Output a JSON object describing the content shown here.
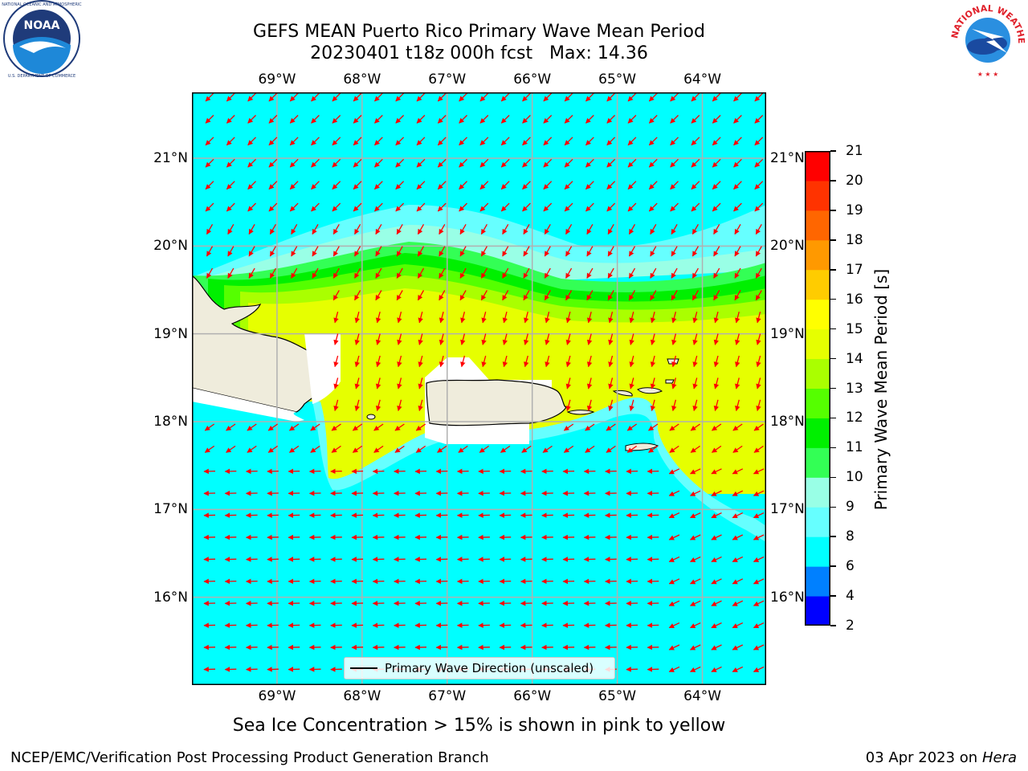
{
  "title": {
    "line1": "GEFS MEAN Puerto Rico Primary Wave Mean Period",
    "line2": "20230401 t18z 000h fcst   Max: 14.36"
  },
  "logos": {
    "left": {
      "icon": "noaa-logo",
      "text": "NOAA",
      "ring_text": "NATIONAL OCEANIC AND ATMOSPHERIC ADMINISTRATION · U.S. DEPARTMENT OF COMMERCE"
    },
    "right": {
      "icon": "nws-logo",
      "ring_text": "NATIONAL WEATHER SERVICE"
    }
  },
  "map": {
    "lon_ticks": [
      "69°W",
      "68°W",
      "67°W",
      "66°W",
      "65°W",
      "64°W"
    ],
    "lat_ticks": [
      "21°N",
      "20°N",
      "19°N",
      "18°N",
      "17°N",
      "16°N"
    ],
    "lon_values": [
      -69,
      -68,
      -67,
      -66,
      -65,
      -64
    ],
    "lat_values": [
      21,
      20,
      19,
      18,
      17,
      16
    ],
    "extent": {
      "lon_min": -70.0,
      "lon_max": -63.25,
      "lat_min": 15.0,
      "lat_max": 21.75
    },
    "land_color": "#efecdc",
    "ocean_base_color": "#00ffff",
    "arrow_color": "#ff0000",
    "legend_label": "Primary Wave Direction (unscaled)"
  },
  "colorbar": {
    "label": "Primary Wave Mean Period [s]",
    "ticks": [
      "2",
      "4",
      "6",
      "8",
      "9",
      "10",
      "11",
      "12",
      "13",
      "14",
      "15",
      "16",
      "17",
      "18",
      "19",
      "20",
      "21"
    ],
    "bins": [
      {
        "lo": 2,
        "hi": 4,
        "color": "#0000ff"
      },
      {
        "lo": 4,
        "hi": 6,
        "color": "#0080ff"
      },
      {
        "lo": 6,
        "hi": 8,
        "color": "#00ffff"
      },
      {
        "lo": 8,
        "hi": 9,
        "color": "#66ffff"
      },
      {
        "lo": 9,
        "hi": 10,
        "color": "#99ffe6"
      },
      {
        "lo": 10,
        "hi": 11,
        "color": "#33ff55"
      },
      {
        "lo": 11,
        "hi": 12,
        "color": "#00f000"
      },
      {
        "lo": 12,
        "hi": 13,
        "color": "#55ff00"
      },
      {
        "lo": 13,
        "hi": 14,
        "color": "#aaff00"
      },
      {
        "lo": 14,
        "hi": 15,
        "color": "#e6ff00"
      },
      {
        "lo": 15,
        "hi": 16,
        "color": "#ffff00"
      },
      {
        "lo": 16,
        "hi": 17,
        "color": "#ffcc00"
      },
      {
        "lo": 17,
        "hi": 18,
        "color": "#ff9900"
      },
      {
        "lo": 18,
        "hi": 19,
        "color": "#ff6600"
      },
      {
        "lo": 19,
        "hi": 20,
        "color": "#ff3300"
      },
      {
        "lo": 20,
        "hi": 21,
        "color": "#ff0000"
      }
    ]
  },
  "subtitle": "Sea Ice Concentration > 15% is shown in pink to yellow",
  "footer": {
    "left": "NCEP/EMC/Verification Post Processing Product Generation Branch",
    "right_prefix": "03 Apr 2023 on ",
    "right_host": "Hera"
  }
}
